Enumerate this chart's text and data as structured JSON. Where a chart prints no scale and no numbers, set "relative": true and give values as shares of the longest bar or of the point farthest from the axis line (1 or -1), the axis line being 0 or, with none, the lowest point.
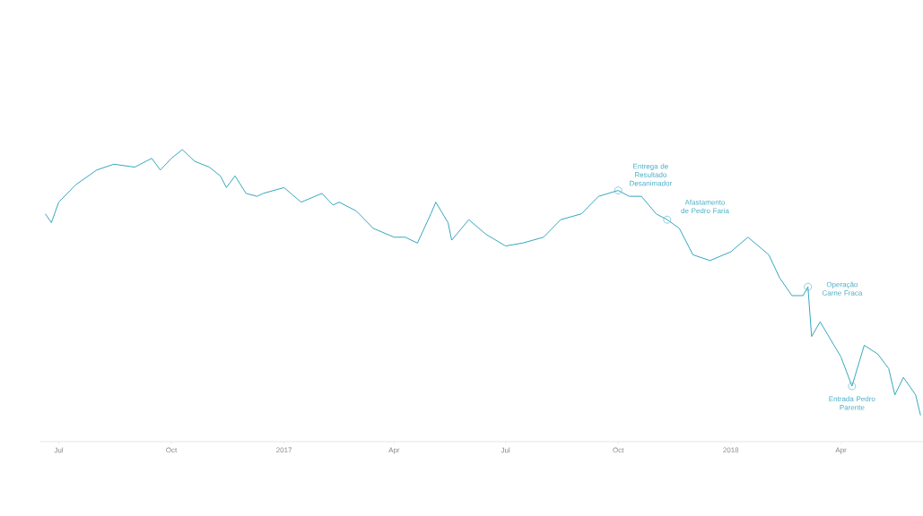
{
  "chart_data": {
    "type": "line",
    "relative": true,
    "grid": false,
    "marker": "none",
    "line_style": "solid",
    "xlim": [
      "2016-06-16",
      "2018-06-07"
    ],
    "xticks": [
      {
        "value": "2016-07-01",
        "label": "Jul"
      },
      {
        "value": "2016-10-01",
        "label": "Oct"
      },
      {
        "value": "2017-01-01",
        "label": "2017"
      },
      {
        "value": "2017-04-01",
        "label": "Apr"
      },
      {
        "value": "2017-07-01",
        "label": "Jul"
      },
      {
        "value": "2017-10-01",
        "label": "Oct"
      },
      {
        "value": "2018-01-01",
        "label": "2018"
      },
      {
        "value": "2018-04-01",
        "label": "Apr"
      }
    ],
    "x": [
      "2016-06-20",
      "2016-06-25",
      "2016-07-01",
      "2016-07-15",
      "2016-08-01",
      "2016-08-15",
      "2016-09-01",
      "2016-09-15",
      "2016-09-22",
      "2016-10-01",
      "2016-10-10",
      "2016-10-20",
      "2016-11-01",
      "2016-11-10",
      "2016-11-15",
      "2016-11-22",
      "2016-12-01",
      "2016-12-10",
      "2016-12-15",
      "2017-01-01",
      "2017-01-15",
      "2017-02-01",
      "2017-02-10",
      "2017-02-15",
      "2017-03-01",
      "2017-03-15",
      "2017-04-01",
      "2017-04-10",
      "2017-04-20",
      "2017-05-01",
      "2017-05-05",
      "2017-05-15",
      "2017-05-18",
      "2017-06-01",
      "2017-06-15",
      "2017-07-01",
      "2017-07-15",
      "2017-08-01",
      "2017-08-15",
      "2017-09-01",
      "2017-09-15",
      "2017-10-01",
      "2017-10-10",
      "2017-10-20",
      "2017-11-01",
      "2017-11-10",
      "2017-11-20",
      "2017-12-01",
      "2017-12-15",
      "2018-01-01",
      "2018-01-15",
      "2018-02-01",
      "2018-02-10",
      "2018-02-20",
      "2018-03-01",
      "2018-03-05",
      "2018-03-08",
      "2018-03-15",
      "2018-04-01",
      "2018-04-10",
      "2018-04-20",
      "2018-05-01",
      "2018-05-10",
      "2018-05-15",
      "2018-05-22",
      "2018-06-01",
      "2018-06-05"
    ],
    "series": [
      {
        "color": "#35a7c0",
        "values": [
          0.78,
          0.75,
          0.82,
          0.88,
          0.93,
          0.95,
          0.94,
          0.97,
          0.93,
          0.97,
          1,
          0.96,
          0.94,
          0.91,
          0.87,
          0.91,
          0.85,
          0.84,
          0.85,
          0.87,
          0.82,
          0.85,
          0.81,
          0.82,
          0.79,
          0.73,
          0.7,
          0.7,
          0.68,
          0.78,
          0.82,
          0.75,
          0.69,
          0.76,
          0.71,
          0.67,
          0.68,
          0.7,
          0.76,
          0.78,
          0.84,
          0.86,
          0.84,
          0.84,
          0.78,
          0.76,
          0.73,
          0.64,
          0.62,
          0.65,
          0.7,
          0.64,
          0.56,
          0.5,
          0.5,
          0.53,
          0.36,
          0.41,
          0.29,
          0.19,
          0.33,
          0.3,
          0.25,
          0.16,
          0.22,
          0.16,
          0.09
        ]
      }
    ],
    "annotations": [
      {
        "text": "Entrega de Resultado Desanimador",
        "x": "2017-10-01",
        "y": 0.86
      },
      {
        "text": "Afastamento de Pedro Faria",
        "x": "2017-11-10",
        "y": 0.76
      },
      {
        "text": "Operação Carne Fraca",
        "x": "2018-03-05",
        "y": 0.53
      },
      {
        "text": "Entrada Pedro Parente",
        "x": "2018-04-10",
        "y": 0.19
      }
    ]
  }
}
